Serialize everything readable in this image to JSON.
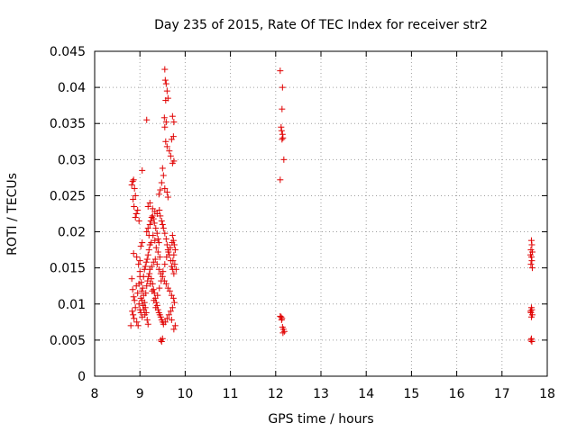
{
  "chart_data": {
    "type": "scatter",
    "title": "Day 235 of 2015, Rate Of TEC Index for receiver str2",
    "xlabel": "GPS time / hours",
    "ylabel": "ROTI / TECUs",
    "xlim": [
      8,
      18
    ],
    "ylim": [
      0,
      0.045
    ],
    "x_ticks": [
      8,
      9,
      10,
      11,
      12,
      13,
      14,
      15,
      16,
      17,
      18
    ],
    "x_tick_labels": [
      "8",
      "9",
      "10",
      "11",
      "12",
      "13",
      "14",
      "15",
      "16",
      "17",
      "18"
    ],
    "y_ticks": [
      0,
      0.005,
      0.01,
      0.015,
      0.02,
      0.025,
      0.03,
      0.035,
      0.04,
      0.045
    ],
    "y_tick_labels": [
      "0",
      "0.005",
      "0.01",
      "0.015",
      "0.02",
      "0.025",
      "0.03",
      "0.035",
      "0.04",
      "0.045"
    ],
    "grid": true,
    "marker": "+",
    "marker_color": "#e00000",
    "series": [
      {
        "name": "str2",
        "points": [
          [
            8.82,
            0.0265
          ],
          [
            8.84,
            0.027
          ],
          [
            8.86,
            0.0272
          ],
          [
            8.88,
            0.026
          ],
          [
            8.85,
            0.0245
          ],
          [
            8.9,
            0.025
          ],
          [
            8.87,
            0.0235
          ],
          [
            8.92,
            0.0225
          ],
          [
            8.95,
            0.023
          ],
          [
            8.98,
            0.0215
          ],
          [
            8.9,
            0.022
          ],
          [
            8.86,
            0.017
          ],
          [
            8.93,
            0.0165
          ],
          [
            8.97,
            0.0155
          ],
          [
            9.0,
            0.016
          ],
          [
            9.02,
            0.018
          ],
          [
            9.05,
            0.0185
          ],
          [
            8.82,
            0.0135
          ],
          [
            8.84,
            0.012
          ],
          [
            8.86,
            0.011
          ],
          [
            8.88,
            0.0105
          ],
          [
            8.9,
            0.0095
          ],
          [
            8.83,
            0.009
          ],
          [
            8.85,
            0.0085
          ],
          [
            8.87,
            0.008
          ],
          [
            8.92,
            0.0125
          ],
          [
            8.95,
            0.0115
          ],
          [
            8.98,
            0.01
          ],
          [
            9.0,
            0.0092
          ],
          [
            9.02,
            0.0088
          ],
          [
            9.05,
            0.0082
          ],
          [
            8.93,
            0.0075
          ],
          [
            8.96,
            0.007
          ],
          [
            8.8,
            0.007
          ],
          [
            9.0,
            0.0145
          ],
          [
            9.03,
            0.013
          ],
          [
            9.06,
            0.0122
          ],
          [
            9.08,
            0.0112
          ],
          [
            9.1,
            0.0102
          ],
          [
            9.12,
            0.0095
          ],
          [
            9.14,
            0.0088
          ],
          [
            9.16,
            0.0078
          ],
          [
            9.18,
            0.0072
          ],
          [
            9.08,
            0.0138
          ],
          [
            9.1,
            0.0148
          ],
          [
            9.12,
            0.0152
          ],
          [
            9.14,
            0.0158
          ],
          [
            9.16,
            0.0162
          ],
          [
            9.18,
            0.0168
          ],
          [
            9.2,
            0.0175
          ],
          [
            9.22,
            0.0182
          ],
          [
            9.2,
            0.0195
          ],
          [
            9.15,
            0.02
          ],
          [
            9.18,
            0.0205
          ],
          [
            9.22,
            0.021
          ],
          [
            9.24,
            0.0215
          ],
          [
            9.26,
            0.022
          ],
          [
            9.28,
            0.0222
          ],
          [
            9.3,
            0.0218
          ],
          [
            9.32,
            0.0212
          ],
          [
            9.35,
            0.0205
          ],
          [
            9.38,
            0.0198
          ],
          [
            9.4,
            0.019
          ],
          [
            9.42,
            0.0185
          ],
          [
            9.18,
            0.0235
          ],
          [
            9.22,
            0.024
          ],
          [
            9.28,
            0.0232
          ],
          [
            9.33,
            0.0228
          ],
          [
            9.38,
            0.0225
          ],
          [
            9.43,
            0.023
          ],
          [
            9.45,
            0.0222
          ],
          [
            9.48,
            0.0215
          ],
          [
            9.5,
            0.021
          ],
          [
            9.52,
            0.0205
          ],
          [
            9.55,
            0.0198
          ],
          [
            9.58,
            0.019
          ],
          [
            9.6,
            0.0182
          ],
          [
            9.62,
            0.0175
          ],
          [
            9.65,
            0.0168
          ],
          [
            9.68,
            0.016
          ],
          [
            9.7,
            0.0152
          ],
          [
            9.72,
            0.0148
          ],
          [
            9.75,
            0.0142
          ],
          [
            9.25,
            0.0135
          ],
          [
            9.28,
            0.0128
          ],
          [
            9.3,
            0.012
          ],
          [
            9.32,
            0.0115
          ],
          [
            9.34,
            0.0108
          ],
          [
            9.36,
            0.0102
          ],
          [
            9.38,
            0.0098
          ],
          [
            9.4,
            0.0092
          ],
          [
            9.42,
            0.0088
          ],
          [
            9.44,
            0.0085
          ],
          [
            9.46,
            0.0082
          ],
          [
            9.48,
            0.0078
          ],
          [
            9.5,
            0.0075
          ],
          [
            9.22,
            0.0148
          ],
          [
            9.26,
            0.0152
          ],
          [
            9.3,
            0.0158
          ],
          [
            9.34,
            0.0162
          ],
          [
            9.38,
            0.0155
          ],
          [
            9.42,
            0.0148
          ],
          [
            9.46,
            0.0142
          ],
          [
            9.5,
            0.0138
          ],
          [
            9.54,
            0.0132
          ],
          [
            9.58,
            0.0128
          ],
          [
            9.62,
            0.0122
          ],
          [
            9.66,
            0.0118
          ],
          [
            9.7,
            0.0112
          ],
          [
            9.74,
            0.0108
          ],
          [
            9.76,
            0.0102
          ],
          [
            9.72,
            0.0095
          ],
          [
            9.68,
            0.009
          ],
          [
            9.64,
            0.0085
          ],
          [
            9.6,
            0.008
          ],
          [
            9.56,
            0.0075
          ],
          [
            9.52,
            0.0072
          ],
          [
            9.7,
            0.0078
          ],
          [
            9.75,
            0.0065
          ],
          [
            9.78,
            0.007
          ],
          [
            9.46,
            0.005
          ],
          [
            9.48,
            0.0048
          ],
          [
            9.5,
            0.0052
          ],
          [
            9.05,
            0.0285
          ],
          [
            9.15,
            0.0355
          ],
          [
            9.55,
            0.0425
          ],
          [
            9.56,
            0.041
          ],
          [
            9.58,
            0.0405
          ],
          [
            9.6,
            0.0395
          ],
          [
            9.57,
            0.0382
          ],
          [
            9.62,
            0.0385
          ],
          [
            9.54,
            0.0358
          ],
          [
            9.58,
            0.0352
          ],
          [
            9.55,
            0.0345
          ],
          [
            9.72,
            0.036
          ],
          [
            9.75,
            0.0352
          ],
          [
            9.57,
            0.0325
          ],
          [
            9.6,
            0.0318
          ],
          [
            9.65,
            0.0312
          ],
          [
            9.7,
            0.0328
          ],
          [
            9.74,
            0.0332
          ],
          [
            9.72,
            0.0295
          ],
          [
            9.68,
            0.0305
          ],
          [
            9.75,
            0.0298
          ],
          [
            9.5,
            0.0288
          ],
          [
            9.52,
            0.0278
          ],
          [
            9.48,
            0.0268
          ],
          [
            9.55,
            0.026
          ],
          [
            9.6,
            0.0255
          ],
          [
            9.62,
            0.0248
          ],
          [
            9.45,
            0.0258
          ],
          [
            9.42,
            0.0252
          ],
          [
            9.72,
            0.0195
          ],
          [
            9.74,
            0.0188
          ],
          [
            9.76,
            0.0182
          ],
          [
            9.78,
            0.0175
          ],
          [
            9.75,
            0.0168
          ],
          [
            9.73,
            0.016
          ],
          [
            9.77,
            0.0155
          ],
          [
            9.8,
            0.0148
          ],
          [
            9.05,
            0.0105
          ],
          [
            9.07,
            0.0098
          ],
          [
            9.09,
            0.0092
          ],
          [
            9.11,
            0.0085
          ],
          [
            9.13,
            0.0115
          ],
          [
            9.15,
            0.0125
          ],
          [
            9.17,
            0.0132
          ],
          [
            9.19,
            0.0138
          ],
          [
            9.21,
            0.0142
          ],
          [
            9.23,
            0.0128
          ],
          [
            9.27,
            0.0118
          ],
          [
            9.31,
            0.0105
          ],
          [
            9.35,
            0.0095
          ],
          [
            9.39,
            0.0112
          ],
          [
            9.43,
            0.0122
          ],
          [
            9.47,
            0.0132
          ],
          [
            9.51,
            0.0145
          ],
          [
            9.55,
            0.0155
          ],
          [
            9.59,
            0.0165
          ],
          [
            9.63,
            0.0172
          ],
          [
            9.67,
            0.0178
          ],
          [
            9.71,
            0.0185
          ],
          [
            9.02,
            0.0108
          ],
          [
            9.04,
            0.0118
          ],
          [
            8.98,
            0.0128
          ],
          [
            9.0,
            0.0138
          ],
          [
            9.36,
            0.0178
          ],
          [
            9.4,
            0.0172
          ],
          [
            9.44,
            0.0165
          ],
          [
            9.33,
            0.0188
          ],
          [
            9.29,
            0.0195
          ],
          [
            9.25,
            0.0185
          ],
          [
            12.1,
            0.0423
          ],
          [
            12.15,
            0.04
          ],
          [
            12.14,
            0.037
          ],
          [
            12.12,
            0.0345
          ],
          [
            12.13,
            0.034
          ],
          [
            12.15,
            0.0335
          ],
          [
            12.14,
            0.0328
          ],
          [
            12.16,
            0.033
          ],
          [
            12.18,
            0.03
          ],
          [
            12.1,
            0.0272
          ],
          [
            12.1,
            0.0083
          ],
          [
            12.12,
            0.0082
          ],
          [
            12.14,
            0.008
          ],
          [
            12.13,
            0.0078
          ],
          [
            12.15,
            0.0068
          ],
          [
            12.17,
            0.0065
          ],
          [
            12.19,
            0.0062
          ],
          [
            12.16,
            0.006
          ],
          [
            17.65,
            0.0188
          ],
          [
            17.66,
            0.0182
          ],
          [
            17.64,
            0.0175
          ],
          [
            17.67,
            0.0172
          ],
          [
            17.63,
            0.0168
          ],
          [
            17.65,
            0.0165
          ],
          [
            17.66,
            0.016
          ],
          [
            17.64,
            0.0155
          ],
          [
            17.67,
            0.015
          ],
          [
            17.65,
            0.0095
          ],
          [
            17.66,
            0.0092
          ],
          [
            17.64,
            0.0088
          ],
          [
            17.67,
            0.0085
          ],
          [
            17.65,
            0.0082
          ],
          [
            17.63,
            0.009
          ],
          [
            17.65,
            0.0052
          ],
          [
            17.66,
            0.0048
          ],
          [
            17.64,
            0.005
          ]
        ]
      }
    ]
  }
}
